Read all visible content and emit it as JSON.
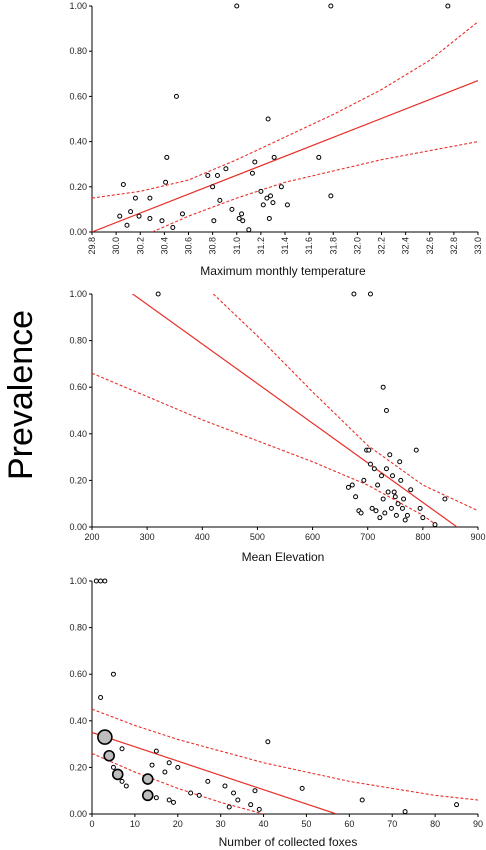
{
  "figure": {
    "ylabel": "Prevalence"
  },
  "chart_data": [
    {
      "type": "scatter",
      "title": "",
      "xlabel": "Maximum monthly temperature",
      "ylabel": "Prevalence",
      "xlim": [
        29.8,
        33.0
      ],
      "ylim": [
        0.0,
        1.0
      ],
      "xticks": [
        "29.8",
        "30.0",
        "30.2",
        "30.4",
        "30.6",
        "30.8",
        "31.0",
        "31.2",
        "31.4",
        "31.6",
        "31.8",
        "32.0",
        "32.2",
        "32.4",
        "32.6",
        "32.8",
        "33.0"
      ],
      "yticks": [
        "0.00",
        "0.20",
        "0.40",
        "0.60",
        "0.80",
        "1.00"
      ],
      "xtick_rotation": "vertical",
      "grid": false,
      "points": [
        {
          "x": 30.03,
          "y": 0.07
        },
        {
          "x": 30.06,
          "y": 0.21
        },
        {
          "x": 30.09,
          "y": 0.03
        },
        {
          "x": 30.12,
          "y": 0.09
        },
        {
          "x": 30.16,
          "y": 0.15
        },
        {
          "x": 30.19,
          "y": 0.07
        },
        {
          "x": 30.28,
          "y": 0.15
        },
        {
          "x": 30.28,
          "y": 0.06
        },
        {
          "x": 30.38,
          "y": 0.05
        },
        {
          "x": 30.41,
          "y": 0.22
        },
        {
          "x": 30.42,
          "y": 0.33
        },
        {
          "x": 30.47,
          "y": 0.02
        },
        {
          "x": 30.5,
          "y": 0.6
        },
        {
          "x": 30.55,
          "y": 0.08
        },
        {
          "x": 30.76,
          "y": 0.25
        },
        {
          "x": 30.8,
          "y": 0.2
        },
        {
          "x": 30.81,
          "y": 0.05
        },
        {
          "x": 30.84,
          "y": 0.25
        },
        {
          "x": 30.86,
          "y": 0.14
        },
        {
          "x": 30.91,
          "y": 0.28
        },
        {
          "x": 30.96,
          "y": 0.1
        },
        {
          "x": 31.0,
          "y": 1.0
        },
        {
          "x": 31.02,
          "y": 0.06
        },
        {
          "x": 31.04,
          "y": 0.08
        },
        {
          "x": 31.05,
          "y": 0.05
        },
        {
          "x": 31.1,
          "y": 0.01
        },
        {
          "x": 31.13,
          "y": 0.26
        },
        {
          "x": 31.15,
          "y": 0.31
        },
        {
          "x": 31.2,
          "y": 0.18
        },
        {
          "x": 31.22,
          "y": 0.12
        },
        {
          "x": 31.25,
          "y": 0.15
        },
        {
          "x": 31.26,
          "y": 0.5
        },
        {
          "x": 31.27,
          "y": 0.06
        },
        {
          "x": 31.28,
          "y": 0.16
        },
        {
          "x": 31.3,
          "y": 0.13
        },
        {
          "x": 31.31,
          "y": 0.33
        },
        {
          "x": 31.37,
          "y": 0.2
        },
        {
          "x": 31.42,
          "y": 0.12
        },
        {
          "x": 31.68,
          "y": 0.33
        },
        {
          "x": 31.78,
          "y": 0.16
        },
        {
          "x": 31.78,
          "y": 1.0
        },
        {
          "x": 32.75,
          "y": 1.0
        }
      ],
      "regression_line": [
        [
          29.8,
          0.0
        ],
        [
          33.0,
          0.67
        ]
      ],
      "confidence_upper": [
        [
          29.8,
          0.15
        ],
        [
          30.2,
          0.18
        ],
        [
          30.6,
          0.23
        ],
        [
          31.0,
          0.32
        ],
        [
          31.4,
          0.42
        ],
        [
          31.8,
          0.52
        ],
        [
          32.2,
          0.63
        ],
        [
          32.6,
          0.76
        ],
        [
          33.0,
          0.93
        ]
      ],
      "confidence_lower": [
        [
          30.3,
          0.0
        ],
        [
          30.6,
          0.07
        ],
        [
          31.0,
          0.15
        ],
        [
          31.4,
          0.22
        ],
        [
          31.8,
          0.27
        ],
        [
          32.2,
          0.32
        ],
        [
          32.6,
          0.36
        ],
        [
          33.0,
          0.4
        ]
      ],
      "line_color": "#e8302a",
      "point_color": "#000000"
    },
    {
      "type": "scatter",
      "title": "",
      "xlabel": "Mean Elevation",
      "ylabel": "Prevalence",
      "xlim": [
        200,
        900
      ],
      "ylim": [
        0.0,
        1.0
      ],
      "xticks": [
        "200",
        "300",
        "400",
        "500",
        "600",
        "700",
        "800",
        "900"
      ],
      "yticks": [
        "0.00",
        "0.20",
        "0.40",
        "0.60",
        "0.80",
        "1.00"
      ],
      "xtick_rotation": "horizontal",
      "grid": false,
      "points": [
        {
          "x": 320,
          "y": 1.0
        },
        {
          "x": 675,
          "y": 1.0
        },
        {
          "x": 705,
          "y": 1.0
        },
        {
          "x": 728,
          "y": 0.6
        },
        {
          "x": 734,
          "y": 0.5
        },
        {
          "x": 665,
          "y": 0.17
        },
        {
          "x": 672,
          "y": 0.18
        },
        {
          "x": 678,
          "y": 0.13
        },
        {
          "x": 684,
          "y": 0.07
        },
        {
          "x": 688,
          "y": 0.06
        },
        {
          "x": 693,
          "y": 0.2
        },
        {
          "x": 698,
          "y": 0.33
        },
        {
          "x": 702,
          "y": 0.33
        },
        {
          "x": 705,
          "y": 0.27
        },
        {
          "x": 708,
          "y": 0.08
        },
        {
          "x": 712,
          "y": 0.25
        },
        {
          "x": 715,
          "y": 0.07
        },
        {
          "x": 718,
          "y": 0.18
        },
        {
          "x": 722,
          "y": 0.04
        },
        {
          "x": 725,
          "y": 0.22
        },
        {
          "x": 728,
          "y": 0.12
        },
        {
          "x": 731,
          "y": 0.06
        },
        {
          "x": 734,
          "y": 0.25
        },
        {
          "x": 737,
          "y": 0.15
        },
        {
          "x": 740,
          "y": 0.31
        },
        {
          "x": 743,
          "y": 0.08
        },
        {
          "x": 745,
          "y": 0.22
        },
        {
          "x": 748,
          "y": 0.15
        },
        {
          "x": 750,
          "y": 0.13
        },
        {
          "x": 752,
          "y": 0.05
        },
        {
          "x": 755,
          "y": 0.1
        },
        {
          "x": 758,
          "y": 0.28
        },
        {
          "x": 760,
          "y": 0.2
        },
        {
          "x": 763,
          "y": 0.08
        },
        {
          "x": 765,
          "y": 0.12
        },
        {
          "x": 768,
          "y": 0.03
        },
        {
          "x": 772,
          "y": 0.05
        },
        {
          "x": 778,
          "y": 0.16
        },
        {
          "x": 788,
          "y": 0.33
        },
        {
          "x": 795,
          "y": 0.08
        },
        {
          "x": 800,
          "y": 0.04
        },
        {
          "x": 822,
          "y": 0.01
        },
        {
          "x": 840,
          "y": 0.12
        }
      ],
      "regression_line": [
        [
          262,
          1.02
        ],
        [
          862,
          0.0
        ]
      ],
      "confidence_upper": [
        [
          420,
          1.0
        ],
        [
          500,
          0.82
        ],
        [
          600,
          0.58
        ],
        [
          700,
          0.35
        ],
        [
          800,
          0.18
        ],
        [
          900,
          0.07
        ]
      ],
      "confidence_lower": [
        [
          200,
          0.66
        ],
        [
          300,
          0.56
        ],
        [
          400,
          0.46
        ],
        [
          500,
          0.37
        ],
        [
          600,
          0.28
        ],
        [
          700,
          0.18
        ],
        [
          800,
          0.05
        ],
        [
          830,
          0.0
        ]
      ],
      "line_color": "#e8302a",
      "point_color": "#000000"
    },
    {
      "type": "scatter",
      "title": "",
      "xlabel": "Number of collected foxes",
      "ylabel": "Prevalence",
      "xlim": [
        0,
        90
      ],
      "ylim": [
        0.0,
        1.0
      ],
      "xticks": [
        "0",
        "10",
        "20",
        "30",
        "40",
        "50",
        "60",
        "70",
        "80",
        "90"
      ],
      "yticks": [
        "0.00",
        "0.20",
        "0.40",
        "0.60",
        "0.80",
        "1.00"
      ],
      "xtick_rotation": "horizontal",
      "grid": false,
      "points": [
        {
          "x": 1,
          "y": 1.0,
          "r": 2
        },
        {
          "x": 2,
          "y": 1.0,
          "r": 2
        },
        {
          "x": 3,
          "y": 1.0,
          "r": 2
        },
        {
          "x": 2,
          "y": 0.5,
          "r": 2
        },
        {
          "x": 5,
          "y": 0.6,
          "r": 2
        },
        {
          "x": 3,
          "y": 0.33,
          "r": 7
        },
        {
          "x": 4,
          "y": 0.25,
          "r": 5
        },
        {
          "x": 6,
          "y": 0.17,
          "r": 5
        },
        {
          "x": 13,
          "y": 0.15,
          "r": 5
        },
        {
          "x": 13,
          "y": 0.08,
          "r": 5
        },
        {
          "x": 5,
          "y": 0.2,
          "r": 2
        },
        {
          "x": 7,
          "y": 0.14,
          "r": 2
        },
        {
          "x": 7,
          "y": 0.28,
          "r": 2
        },
        {
          "x": 8,
          "y": 0.12,
          "r": 2
        },
        {
          "x": 14,
          "y": 0.21,
          "r": 2
        },
        {
          "x": 15,
          "y": 0.27,
          "r": 2
        },
        {
          "x": 15,
          "y": 0.07,
          "r": 2
        },
        {
          "x": 17,
          "y": 0.18,
          "r": 2
        },
        {
          "x": 18,
          "y": 0.22,
          "r": 2
        },
        {
          "x": 18,
          "y": 0.06,
          "r": 2
        },
        {
          "x": 19,
          "y": 0.05,
          "r": 2
        },
        {
          "x": 20,
          "y": 0.2,
          "r": 2
        },
        {
          "x": 23,
          "y": 0.09,
          "r": 2
        },
        {
          "x": 25,
          "y": 0.08,
          "r": 2
        },
        {
          "x": 27,
          "y": 0.14,
          "r": 2
        },
        {
          "x": 31,
          "y": 0.12,
          "r": 2
        },
        {
          "x": 32,
          "y": 0.03,
          "r": 2
        },
        {
          "x": 33,
          "y": 0.09,
          "r": 2
        },
        {
          "x": 34,
          "y": 0.06,
          "r": 2
        },
        {
          "x": 37,
          "y": 0.04,
          "r": 2
        },
        {
          "x": 38,
          "y": 0.1,
          "r": 2
        },
        {
          "x": 39,
          "y": 0.02,
          "r": 2
        },
        {
          "x": 41,
          "y": 0.31,
          "r": 2
        },
        {
          "x": 49,
          "y": 0.11,
          "r": 2
        },
        {
          "x": 63,
          "y": 0.06,
          "r": 2
        },
        {
          "x": 73,
          "y": 0.01,
          "r": 2
        },
        {
          "x": 85,
          "y": 0.04,
          "r": 2
        }
      ],
      "regression_line": [
        [
          0,
          0.35
        ],
        [
          57,
          0.0
        ]
      ],
      "confidence_upper": [
        [
          0,
          0.45
        ],
        [
          10,
          0.38
        ],
        [
          20,
          0.32
        ],
        [
          30,
          0.27
        ],
        [
          40,
          0.22
        ],
        [
          50,
          0.18
        ],
        [
          60,
          0.14
        ],
        [
          70,
          0.11
        ],
        [
          80,
          0.08
        ],
        [
          90,
          0.06
        ]
      ],
      "confidence_lower": [
        [
          0,
          0.26
        ],
        [
          10,
          0.18
        ],
        [
          20,
          0.11
        ],
        [
          30,
          0.05
        ],
        [
          40,
          0.0
        ]
      ],
      "line_color": "#e8302a",
      "point_color": "#000000",
      "large_point_fill": "#bdbdbd"
    }
  ]
}
